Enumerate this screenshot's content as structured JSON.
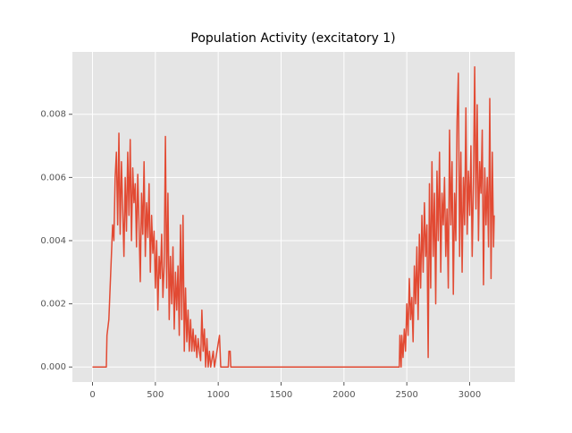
{
  "chart_data": {
    "type": "line",
    "title": "Population Activity (excitatory 1)",
    "x": [
      0,
      110,
      115,
      130,
      140,
      150,
      160,
      170,
      180,
      190,
      200,
      210,
      220,
      230,
      240,
      250,
      260,
      270,
      280,
      290,
      300,
      310,
      320,
      330,
      340,
      350,
      360,
      370,
      380,
      390,
      400,
      410,
      420,
      430,
      440,
      450,
      460,
      470,
      480,
      490,
      500,
      510,
      520,
      530,
      540,
      550,
      560,
      570,
      580,
      590,
      600,
      610,
      620,
      630,
      640,
      650,
      660,
      670,
      680,
      690,
      700,
      710,
      720,
      730,
      740,
      750,
      760,
      770,
      780,
      790,
      800,
      810,
      820,
      830,
      840,
      850,
      860,
      870,
      880,
      890,
      900,
      910,
      920,
      930,
      940,
      960,
      970,
      1010,
      1020,
      1080,
      1085,
      1095,
      1100,
      2440,
      2445,
      2455,
      2460,
      2470,
      2480,
      2490,
      2500,
      2510,
      2520,
      2530,
      2540,
      2550,
      2560,
      2570,
      2580,
      2590,
      2600,
      2610,
      2620,
      2630,
      2640,
      2650,
      2660,
      2670,
      2680,
      2690,
      2700,
      2710,
      2720,
      2730,
      2740,
      2750,
      2760,
      2770,
      2780,
      2790,
      2800,
      2810,
      2820,
      2830,
      2840,
      2850,
      2860,
      2870,
      2880,
      2890,
      2900,
      2910,
      2920,
      2930,
      2940,
      2950,
      2960,
      2970,
      2980,
      2990,
      3000,
      3010,
      3020,
      3030,
      3040,
      3050,
      3060,
      3070,
      3080,
      3090,
      3100,
      3110,
      3120,
      3130,
      3140,
      3150,
      3160,
      3170,
      3180,
      3190,
      3195
    ],
    "series": [
      {
        "color": "#E24A33",
        "values": [
          0,
          0,
          0.001,
          0.0015,
          0.0025,
          0.0035,
          0.0045,
          0.004,
          0.006,
          0.0068,
          0.0045,
          0.0074,
          0.0042,
          0.0065,
          0.005,
          0.0035,
          0.006,
          0.0043,
          0.0068,
          0.0048,
          0.0072,
          0.004,
          0.0063,
          0.0052,
          0.0058,
          0.0038,
          0.0061,
          0.0045,
          0.0027,
          0.0055,
          0.0042,
          0.0065,
          0.0035,
          0.0052,
          0.0041,
          0.0058,
          0.003,
          0.0048,
          0.0036,
          0.0043,
          0.0025,
          0.004,
          0.0018,
          0.0035,
          0.0028,
          0.0042,
          0.0022,
          0.0032,
          0.0073,
          0.0025,
          0.0055,
          0.0015,
          0.0035,
          0.002,
          0.0038,
          0.0012,
          0.003,
          0.0018,
          0.0032,
          0.001,
          0.0045,
          0.0015,
          0.0048,
          0.0005,
          0.0025,
          0.0008,
          0.0018,
          0.0005,
          0.0015,
          0.0005,
          0.0012,
          0.0005,
          0.001,
          0.0003,
          0.0009,
          0.0005,
          0.0002,
          0.0018,
          0.0005,
          0.0012,
          0,
          0.0009,
          0,
          0.0005,
          0,
          0.0005,
          0,
          0.001,
          0,
          0,
          0.0005,
          0.0005,
          0,
          0,
          0.001,
          0,
          0.001,
          0.0003,
          0.0012,
          0.0005,
          0.002,
          0.001,
          0.0028,
          0.0015,
          0.0022,
          0.0008,
          0.0032,
          0.002,
          0.0038,
          0.0015,
          0.0042,
          0.0025,
          0.0048,
          0.003,
          0.0052,
          0.0035,
          0.0045,
          0.0003,
          0.0058,
          0.0025,
          0.0065,
          0.0035,
          0.0055,
          0.002,
          0.0062,
          0.004,
          0.0068,
          0.003,
          0.0055,
          0.0045,
          0.006,
          0.0035,
          0.005,
          0.0025,
          0.0075,
          0.0045,
          0.0065,
          0.0023,
          0.0055,
          0.004,
          0.0078,
          0.0093,
          0.0035,
          0.0068,
          0.003,
          0.006,
          0.0045,
          0.0082,
          0.0042,
          0.0062,
          0.0048,
          0.007,
          0.0035,
          0.0058,
          0.0095,
          0.005,
          0.0083,
          0.004,
          0.0065,
          0.0055,
          0.0075,
          0.0026,
          0.0063,
          0.0045,
          0.006,
          0.0038,
          0.0085,
          0.0028,
          0.0068,
          0.0038,
          0.0048
        ]
      }
    ],
    "xlim": [
      -160,
      3359
    ],
    "ylim": [
      -0.000475,
      0.009975
    ],
    "xticks": [
      0,
      500,
      1000,
      1500,
      2000,
      2500,
      3000
    ],
    "yticks": [
      {
        "value": 0,
        "label": "0.000"
      },
      {
        "value": 0.002,
        "label": "0.002"
      },
      {
        "value": 0.004,
        "label": "0.004"
      },
      {
        "value": 0.006,
        "label": "0.006"
      },
      {
        "value": 0.008,
        "label": "0.008"
      }
    ],
    "grid": true
  }
}
